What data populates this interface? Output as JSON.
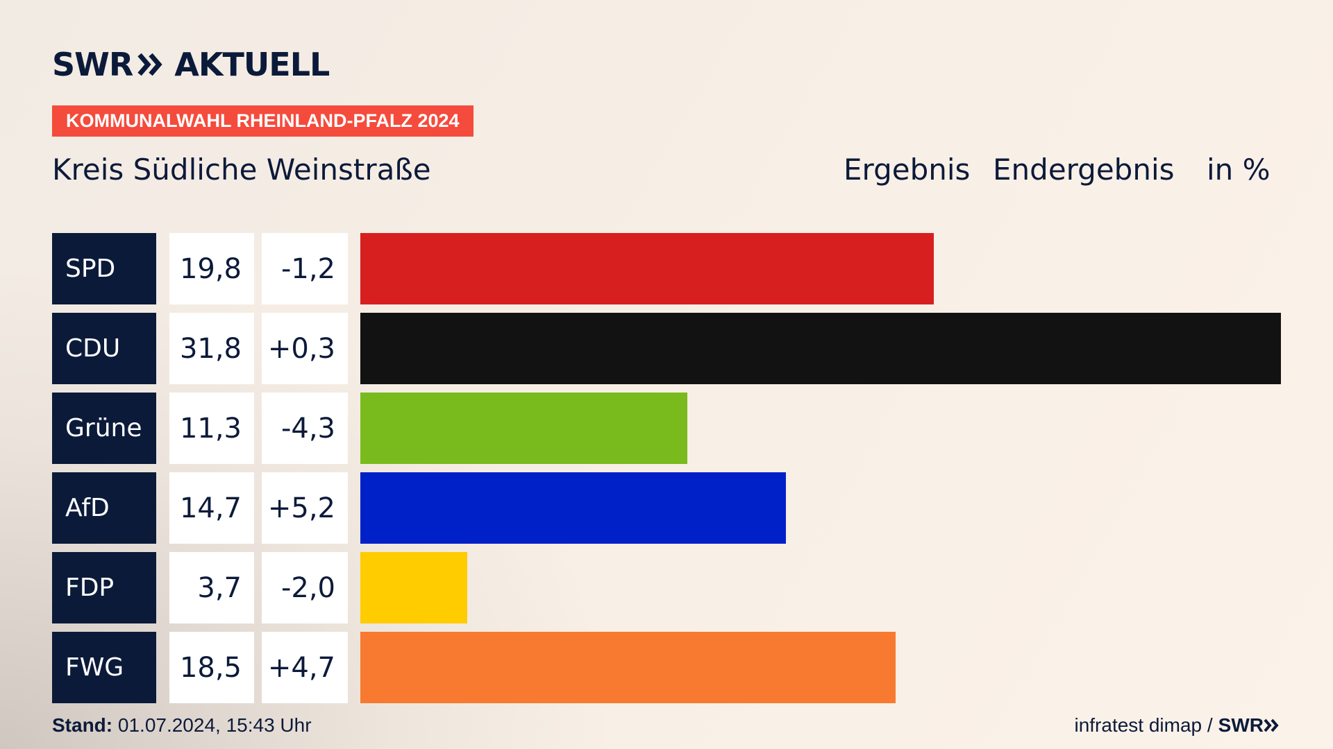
{
  "header": {
    "logo_text": "SWR",
    "logo_sub": "AKTUELL",
    "badge": "KOMMUNALWAHL RHEINLAND-PFALZ 2024",
    "region": "Kreis Südliche Weinstraße",
    "col_result": "Ergebnis",
    "col_status": "Endergebnis",
    "col_unit": "in %"
  },
  "footer": {
    "stand_label": "Stand:",
    "stand_value": "01.07.2024, 15:43 Uhr",
    "source": "infratest dimap /",
    "source_brand": "SWR"
  },
  "colors": {
    "navy": "#0c1a3a",
    "badge": "#f44b3c"
  },
  "chart_data": {
    "type": "bar",
    "orientation": "horizontal",
    "title": "Kreis Südliche Weinstraße",
    "unit": "in %",
    "categories": [
      "SPD",
      "CDU",
      "Grüne",
      "AfD",
      "FDP",
      "FWG"
    ],
    "values": [
      19.8,
      31.8,
      11.3,
      14.7,
      3.7,
      18.5
    ],
    "value_labels": [
      "19,8",
      "31,8",
      "11,3",
      "14,7",
      "3,7",
      "18,5"
    ],
    "changes": [
      "-1,2",
      "+0,3",
      "-4,3",
      "+5,2",
      "-2,0",
      "+4,7"
    ],
    "bar_colors": [
      "#d81f1f",
      "#121212",
      "#79bb1c",
      "#0020c8",
      "#ffcc00",
      "#f87a30"
    ],
    "xlim": [
      0,
      31.8
    ],
    "grid": false,
    "legend": "none"
  }
}
